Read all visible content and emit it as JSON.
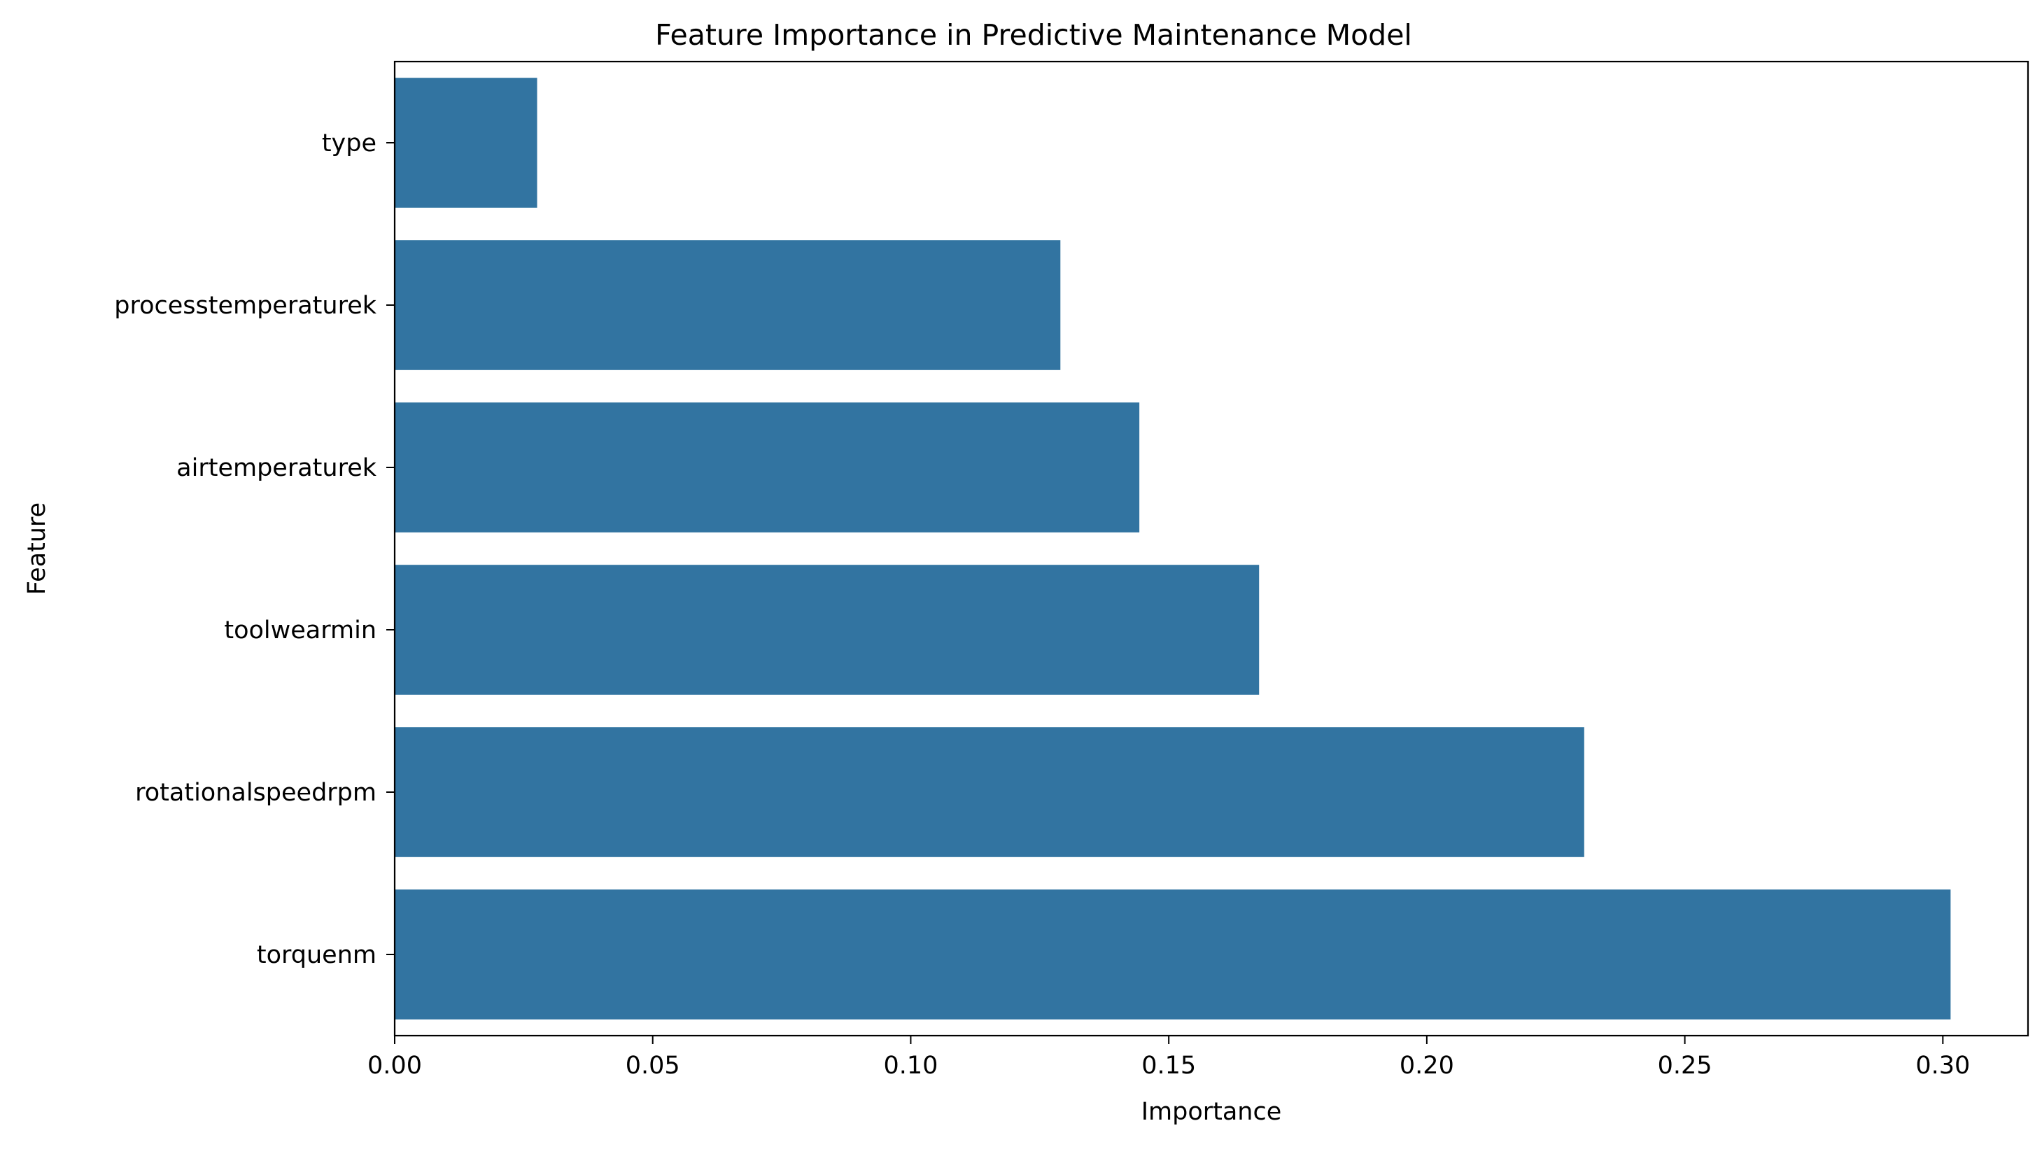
{
  "chart_data": {
    "type": "bar",
    "orientation": "horizontal",
    "title": "Feature Importance in Predictive Maintenance Model",
    "xlabel": "Importance",
    "ylabel": "Feature",
    "categories": [
      "type",
      "processtemperaturek",
      "airtemperaturek",
      "toolwearmin",
      "rotationalspeedrpm",
      "torquenm"
    ],
    "values": [
      0.0276,
      0.129,
      0.1443,
      0.1675,
      0.2305,
      0.3015
    ],
    "xlim": [
      0,
      0.3165
    ],
    "xticks": [
      0.0,
      0.05,
      0.1,
      0.15,
      0.2,
      0.25,
      0.3
    ],
    "xtick_labels": [
      "0.00",
      "0.05",
      "0.10",
      "0.15",
      "0.20",
      "0.25",
      "0.30"
    ],
    "grid": false,
    "bar_color": "#3274a1"
  }
}
